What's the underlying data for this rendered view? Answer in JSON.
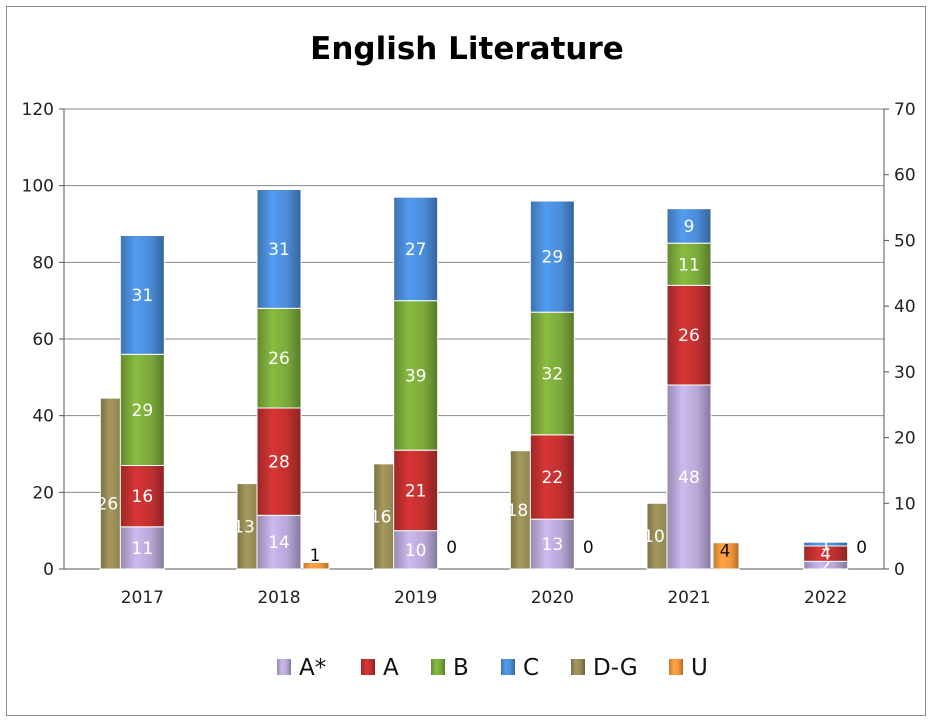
{
  "chart_data": {
    "type": "bar",
    "title": "English Literature",
    "categories": [
      "2017",
      "2018",
      "2019",
      "2020",
      "2021",
      "2022"
    ],
    "ylim": [
      0,
      120
    ],
    "yticks": [
      0,
      20,
      40,
      60,
      80,
      100,
      120
    ],
    "y2lim": [
      0,
      70
    ],
    "y2ticks": [
      0,
      10,
      20,
      30,
      40,
      50,
      60,
      70
    ],
    "grid": true,
    "legend_position": "bottom",
    "stacked_series": [
      {
        "name": "A*",
        "color": "#b7a6d6",
        "values": [
          11,
          14,
          10,
          13,
          48,
          2
        ],
        "labels": [
          "11",
          "14",
          "10",
          "13",
          "48",
          "2"
        ]
      },
      {
        "name": "A",
        "color": "#c0302f",
        "values": [
          16,
          28,
          21,
          22,
          26,
          4
        ],
        "labels": [
          "16",
          "28",
          "21",
          "22",
          "26",
          "4"
        ]
      },
      {
        "name": "B",
        "color": "#7aa83a",
        "values": [
          29,
          26,
          39,
          32,
          11,
          0
        ],
        "labels": [
          "29",
          "26",
          "39",
          "32",
          "11",
          ""
        ]
      },
      {
        "name": "C",
        "color": "#4a8bd6",
        "values": [
          31,
          31,
          27,
          29,
          9,
          1
        ],
        "labels": [
          "31",
          "31",
          "27",
          "29",
          "9",
          "1"
        ]
      }
    ],
    "secondary_series": [
      {
        "name": "D-G",
        "color": "#938953",
        "values": [
          26,
          13,
          16,
          18,
          10,
          0
        ],
        "labels": [
          "26",
          "13",
          "16",
          "18",
          "10",
          ""
        ]
      },
      {
        "name": "U",
        "color": "#f0943a",
        "values": [
          0,
          1,
          0,
          0,
          4,
          0
        ],
        "labels": [
          "",
          "1",
          "0",
          "0",
          "4",
          "0"
        ]
      }
    ],
    "legend": [
      "A*",
      "A",
      "B",
      "C",
      "D-G",
      "U"
    ]
  }
}
